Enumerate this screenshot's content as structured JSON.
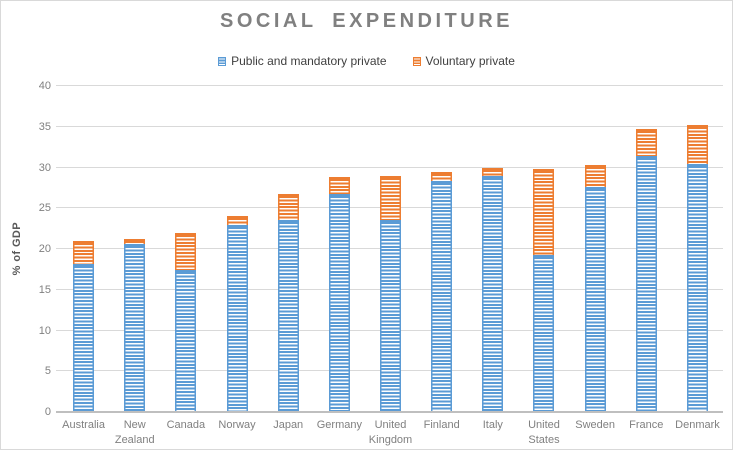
{
  "title": "SOCIAL EXPENDITURE",
  "legend": [
    {
      "label": "Public and mandatory private",
      "color": "#5B9BD5"
    },
    {
      "label": "Voluntary private",
      "color": "#ED7D31"
    }
  ],
  "colors": {
    "series_public": "#5B9BD5",
    "series_voluntary": "#ED7D31",
    "title_text": "#808080",
    "axis_text": "#808080",
    "legend_text": "#404040",
    "gridline": "#D9D9D9",
    "axis_line": "#BFBFBF",
    "background": "#FFFFFF"
  },
  "chart_data": {
    "type": "bar",
    "stacked": true,
    "title": "SOCIAL EXPENDITURE",
    "xlabel": "",
    "ylabel": "% of GDP",
    "ylim": [
      0,
      40
    ],
    "ytick_interval": 5,
    "ytick_labels": [
      "0",
      "5",
      "10",
      "15",
      "20",
      "25",
      "30",
      "35",
      "40"
    ],
    "grid": true,
    "legend_position": "top",
    "categories": [
      "Australia",
      "New Zealand",
      "Canada",
      "Norway",
      "Japan",
      "Germany",
      "United Kingdom",
      "Finland",
      "Italy",
      "United States",
      "Sweden",
      "France",
      "Denmark"
    ],
    "series": [
      {
        "name": "Public and mandatory private",
        "color": "#5B9BD5",
        "values": [
          18.2,
          20.6,
          17.4,
          23.0,
          23.6,
          26.7,
          23.6,
          28.4,
          29.0,
          19.3,
          27.6,
          31.4,
          30.4
        ]
      },
      {
        "name": "Voluntary private",
        "color": "#ED7D31",
        "values": [
          2.8,
          0.6,
          4.6,
          1.0,
          3.1,
          2.1,
          5.3,
          1.1,
          0.9,
          10.5,
          2.7,
          3.3,
          4.8
        ]
      }
    ],
    "totals": [
      21.0,
      21.2,
      22.0,
      24.0,
      26.7,
      28.8,
      28.9,
      29.5,
      29.9,
      29.8,
      30.3,
      34.7,
      35.2
    ]
  }
}
